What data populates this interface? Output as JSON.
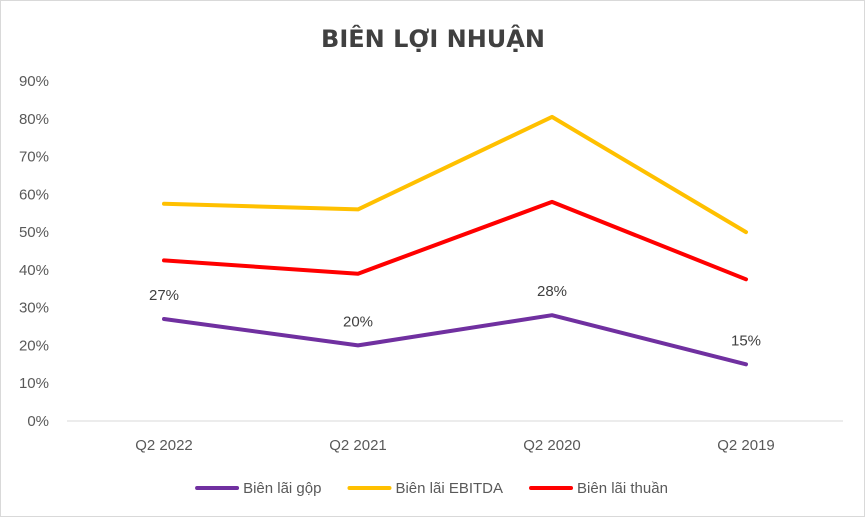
{
  "chart_data": {
    "type": "line",
    "title": "BIÊN LỢI NHUẬN",
    "xlabel": "",
    "ylabel": "",
    "categories": [
      "Q2 2022",
      "Q2 2021",
      "Q2 2020",
      "Q2 2019"
    ],
    "ylim": [
      0,
      0.9
    ],
    "yticks": [
      0,
      0.1,
      0.2,
      0.3,
      0.4,
      0.5,
      0.6,
      0.7,
      0.8,
      0.9
    ],
    "ytick_labels": [
      "0%",
      "10%",
      "20%",
      "30%",
      "40%",
      "50%",
      "60%",
      "70%",
      "80%",
      "90%"
    ],
    "grid": false,
    "legend_position": "bottom",
    "series": [
      {
        "name": "Biên lãi gộp",
        "color": "#7030a0",
        "values": [
          0.27,
          0.2,
          0.28,
          0.15
        ],
        "data_labels": [
          "27%",
          "20%",
          "28%",
          "15%"
        ]
      },
      {
        "name": "Biên lãi EBITDA",
        "color": "#ffc000",
        "values": [
          0.575,
          0.56,
          0.805,
          0.5
        ]
      },
      {
        "name": "Biên lãi thuần",
        "color": "#ff0000",
        "values": [
          0.425,
          0.39,
          0.58,
          0.375
        ]
      }
    ]
  }
}
